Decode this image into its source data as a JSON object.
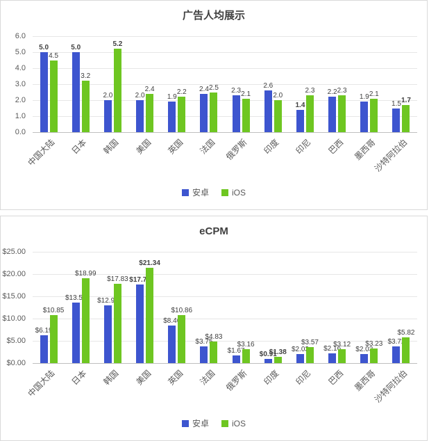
{
  "chart_data": [
    {
      "type": "bar",
      "title": "广告人均展示",
      "categories": [
        "中国大陆",
        "日本",
        "韩国",
        "美国",
        "英国",
        "法国",
        "俄罗斯",
        "印度",
        "印尼",
        "巴西",
        "墨西哥",
        "沙特阿拉伯"
      ],
      "series": [
        {
          "name": "安卓",
          "color": "#3D55CF",
          "values": [
            5.0,
            5.0,
            2.0,
            2.0,
            1.9,
            2.4,
            2.3,
            2.6,
            1.4,
            2.2,
            1.9,
            1.5
          ],
          "labels": [
            "5.0",
            "5.0",
            "2.0",
            "2.0",
            "1.9",
            "2.4",
            "2.3",
            "2.6",
            "1.4",
            "2.2",
            "1.9",
            "1.5"
          ],
          "bold": [
            true,
            true,
            false,
            false,
            false,
            false,
            false,
            false,
            true,
            false,
            false,
            false
          ]
        },
        {
          "name": "iOS",
          "color": "#6EC621",
          "values": [
            4.5,
            3.2,
            5.2,
            2.4,
            2.2,
            2.5,
            2.1,
            2.0,
            2.3,
            2.3,
            2.1,
            1.7
          ],
          "labels": [
            "4.5",
            "3.2",
            "5.2",
            "2.4",
            "2.2",
            "2.5",
            "2.1",
            "2.0",
            "2.3",
            "2.3",
            "2.1",
            "1.7"
          ],
          "bold": [
            false,
            false,
            true,
            false,
            false,
            false,
            false,
            false,
            false,
            false,
            false,
            true
          ]
        }
      ],
      "ylim": [
        0,
        6
      ],
      "yticks": [
        "6.0",
        "5.0",
        "4.0",
        "3.0",
        "2.0",
        "1.0",
        "0.0"
      ],
      "grid": true,
      "legend_position": "bottom"
    },
    {
      "type": "bar",
      "title": "eCPM",
      "categories": [
        "中国大陆",
        "日本",
        "韩国",
        "美国",
        "英国",
        "法国",
        "俄罗斯",
        "印度",
        "印尼",
        "巴西",
        "墨西哥",
        "沙特阿拉伯"
      ],
      "series": [
        {
          "name": "安卓",
          "color": "#3D55CF",
          "values": [
            6.19,
            13.56,
            12.93,
            17.71,
            8.46,
            3.75,
            1.67,
            0.91,
            2.03,
            2.16,
            2.03,
            3.72
          ],
          "labels": [
            "$6.19",
            "$13.56",
            "$12.93",
            "$17.71",
            "$8.46",
            "$3.75",
            "$1.67",
            "$0.91",
            "$2.03",
            "$2.16",
            "$2.03",
            "$3.72"
          ],
          "bold": [
            false,
            false,
            false,
            true,
            false,
            false,
            false,
            true,
            false,
            false,
            false,
            false
          ]
        },
        {
          "name": "iOS",
          "color": "#6EC621",
          "values": [
            10.85,
            18.99,
            17.83,
            21.34,
            10.86,
            4.83,
            3.16,
            1.38,
            3.57,
            3.12,
            3.23,
            5.82
          ],
          "labels": [
            "$10.85",
            "$18.99",
            "$17.83",
            "$21.34",
            "$10.86",
            "$4.83",
            "$3.16",
            "$1.38",
            "$3.57",
            "$3.12",
            "$3.23",
            "$5.82"
          ],
          "bold": [
            false,
            false,
            false,
            true,
            false,
            false,
            false,
            true,
            false,
            false,
            false,
            false
          ]
        }
      ],
      "ylim": [
        0,
        25
      ],
      "yticks": [
        "$25.00",
        "$20.00",
        "$15.00",
        "$10.00",
        "$5.00",
        "$0.00"
      ],
      "grid": true,
      "legend_position": "bottom"
    }
  ]
}
